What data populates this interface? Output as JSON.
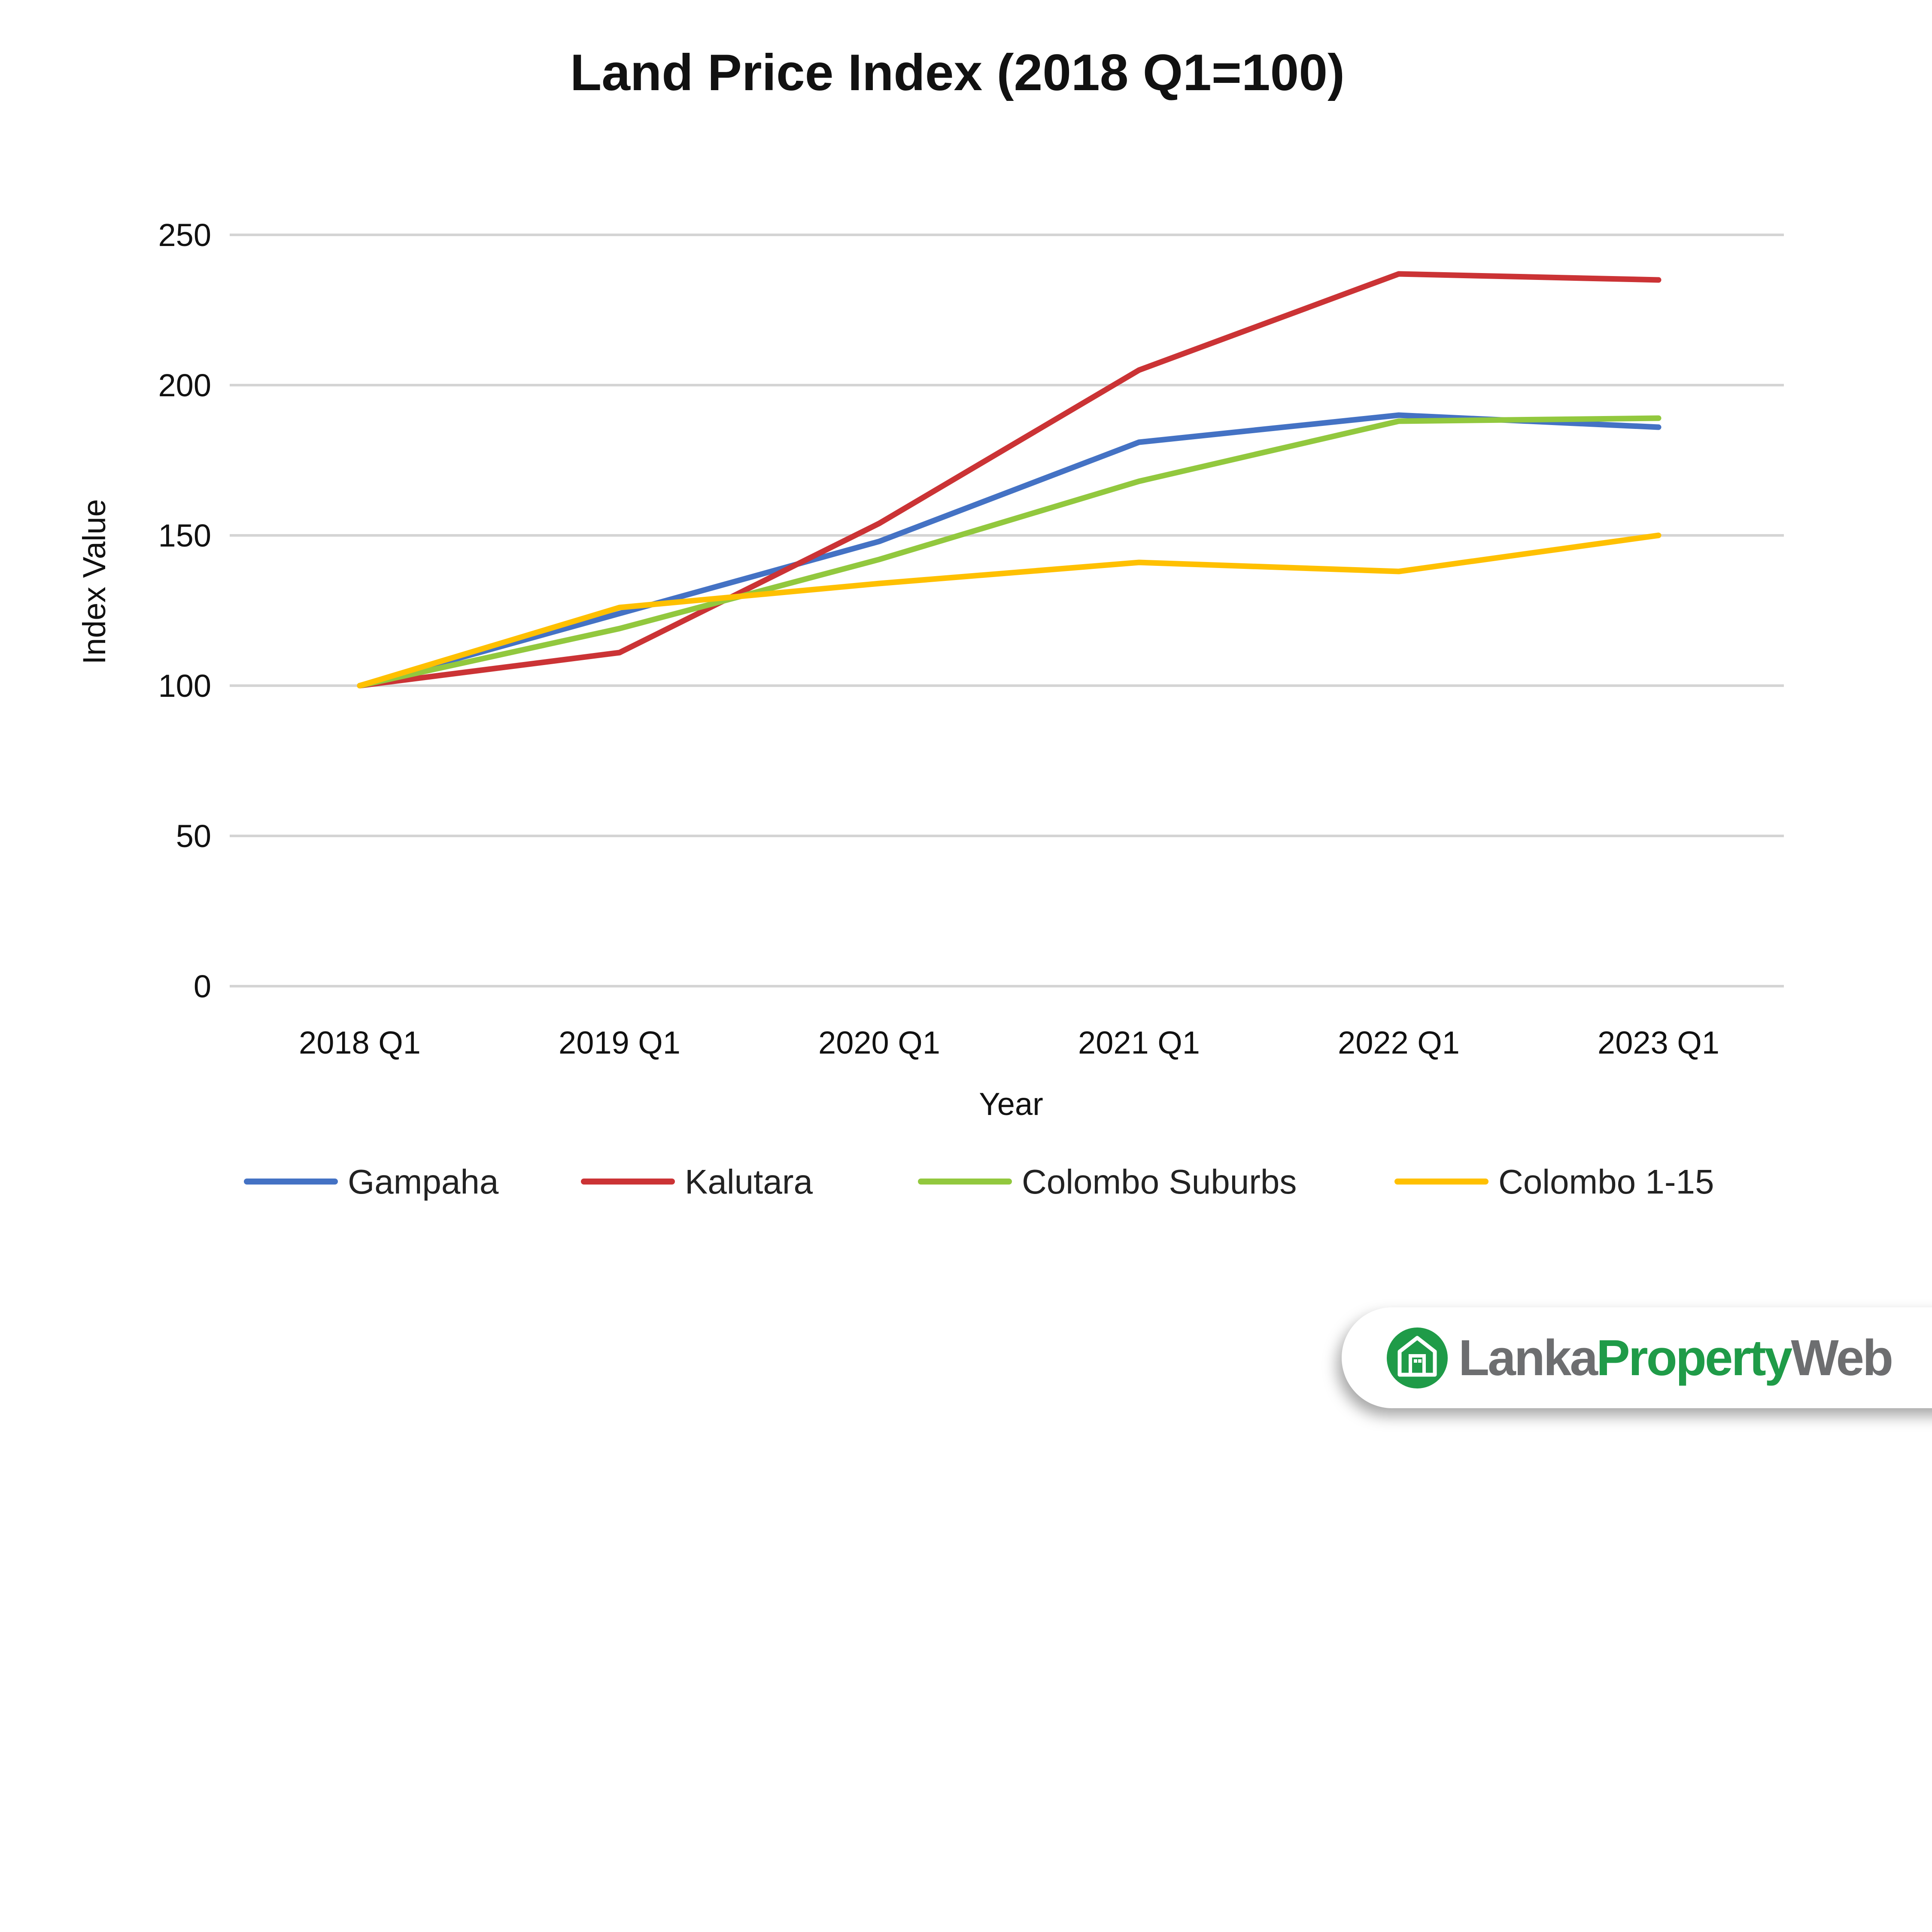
{
  "chart_data": {
    "type": "line",
    "title": "Land Price Index (2018 Q1=100)",
    "xlabel": "Year",
    "ylabel": "Index Value",
    "categories": [
      "2018 Q1",
      "2019 Q1",
      "2020 Q1",
      "2021 Q1",
      "2022 Q1",
      "2023 Q1"
    ],
    "ylim": [
      0,
      250
    ],
    "yticks": [
      0,
      50,
      100,
      150,
      200,
      250
    ],
    "grid": true,
    "legend_position": "bottom",
    "series": [
      {
        "name": "Gampaha",
        "color": "#4472C4",
        "values": [
          100,
          124,
          148,
          181,
          190,
          186
        ]
      },
      {
        "name": "Kalutara",
        "color": "#CB3335",
        "values": [
          100,
          111,
          154,
          205,
          237,
          235
        ]
      },
      {
        "name": "Colombo Suburbs",
        "color": "#92C83E",
        "values": [
          100,
          119,
          142,
          168,
          188,
          189
        ]
      },
      {
        "name": "Colombo 1-15",
        "color": "#FFC000",
        "values": [
          100,
          126,
          134,
          141,
          138,
          150
        ]
      }
    ]
  },
  "logo": {
    "part1": "Lanka",
    "part2": "Property",
    "part3": "Web",
    "icon": "house-icon"
  }
}
